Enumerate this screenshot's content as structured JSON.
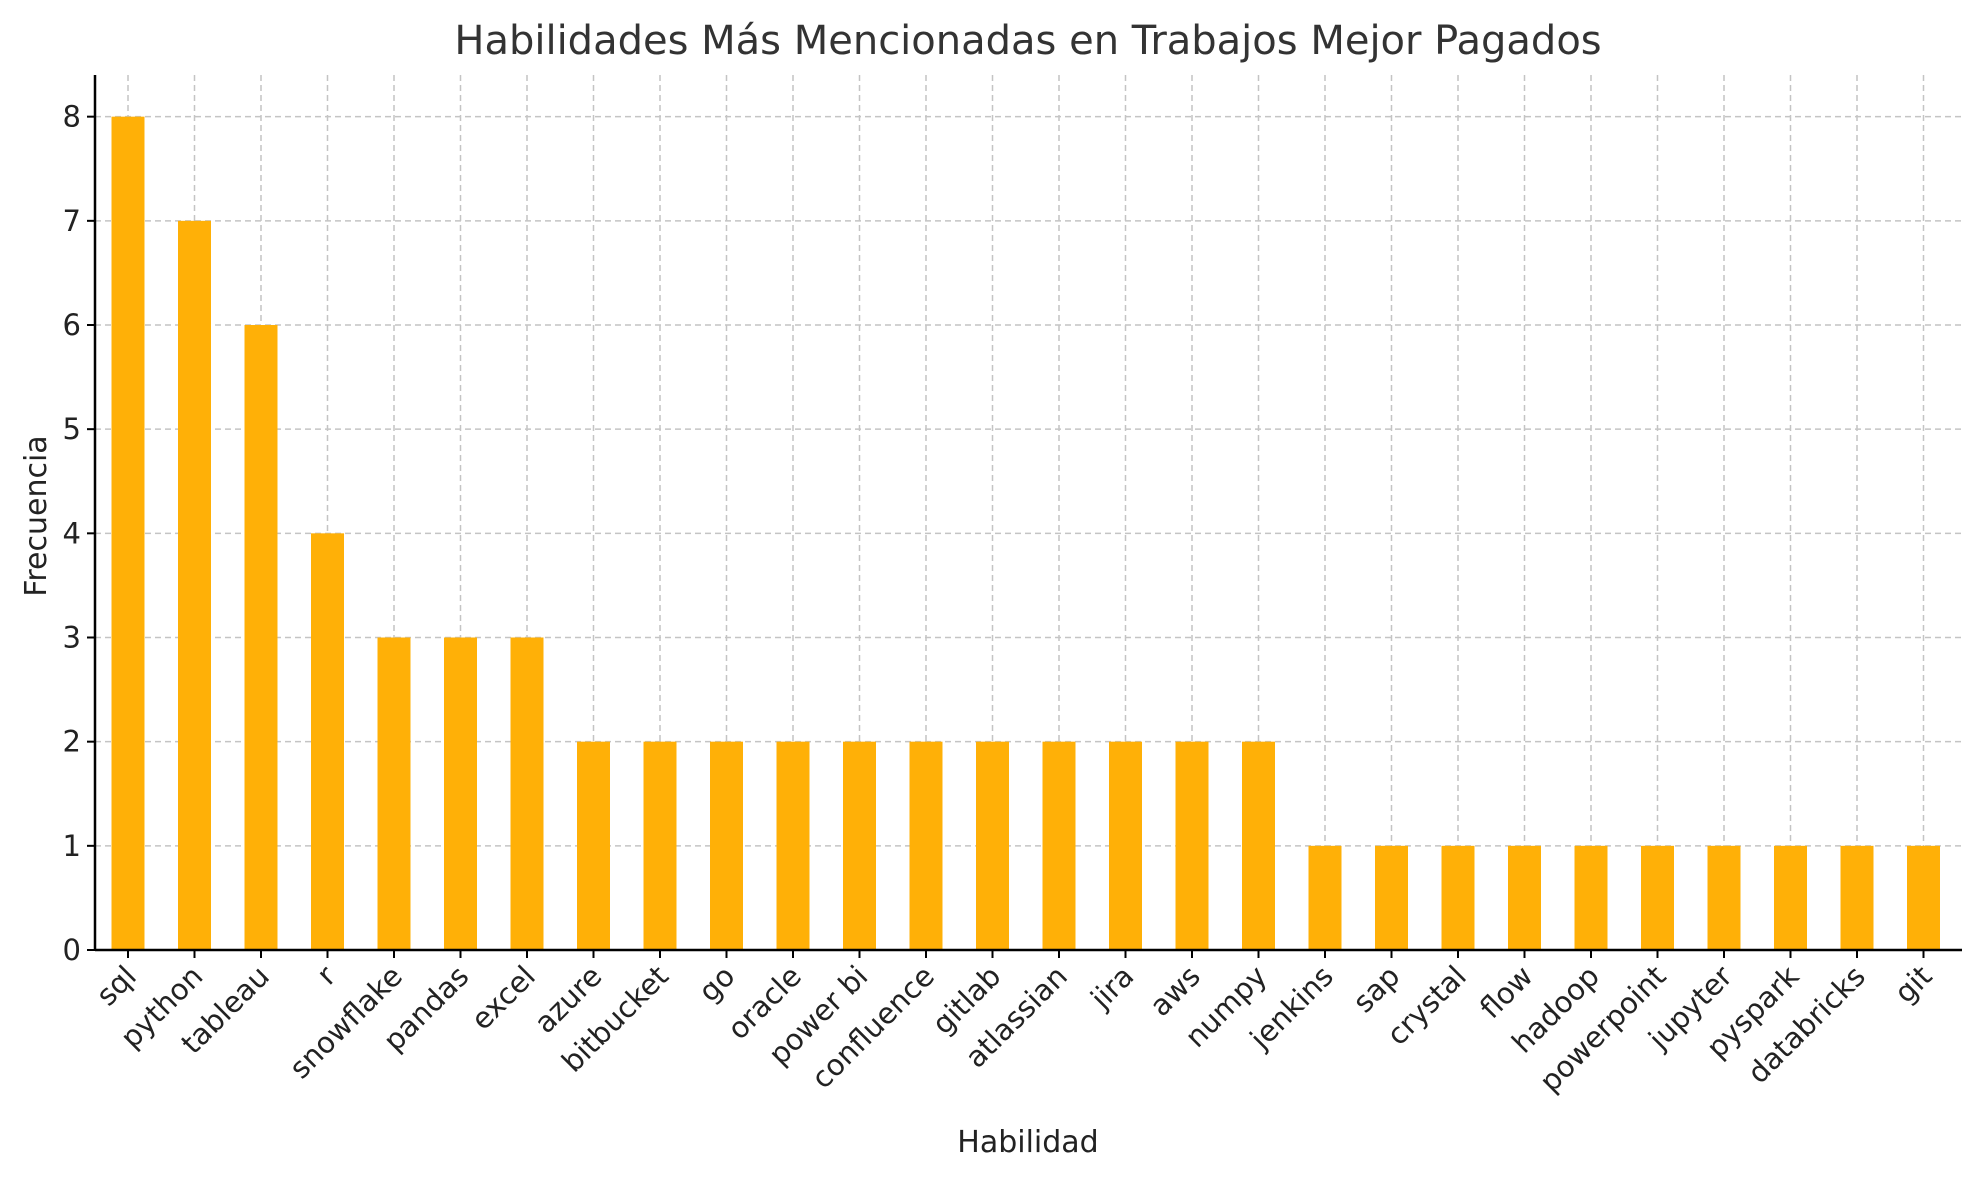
{
  "chart_data": {
    "type": "bar",
    "title": "Habilidades Más Mencionadas en Trabajos Mejor Pagados",
    "xlabel": "Habilidad",
    "ylabel": "Frecuencia",
    "categories": [
      "sql",
      "python",
      "tableau",
      "r",
      "snowflake",
      "pandas",
      "excel",
      "azure",
      "bitbucket",
      "go",
      "oracle",
      "power bi",
      "confluence",
      "gitlab",
      "atlassian",
      "jira",
      "aws",
      "numpy",
      "jenkins",
      "sap",
      "crystal",
      "flow",
      "hadoop",
      "powerpoint",
      "jupyter",
      "pyspark",
      "databricks",
      "git"
    ],
    "values": [
      8,
      7,
      6,
      4,
      3,
      3,
      3,
      2,
      2,
      2,
      2,
      2,
      2,
      2,
      2,
      2,
      2,
      2,
      1,
      1,
      1,
      1,
      1,
      1,
      1,
      1,
      1,
      1
    ],
    "ylim": [
      0,
      8.4
    ],
    "yticks": [
      0,
      1,
      2,
      3,
      4,
      5,
      6,
      7,
      8
    ],
    "grid": true,
    "bar_color": "#FFB007"
  }
}
